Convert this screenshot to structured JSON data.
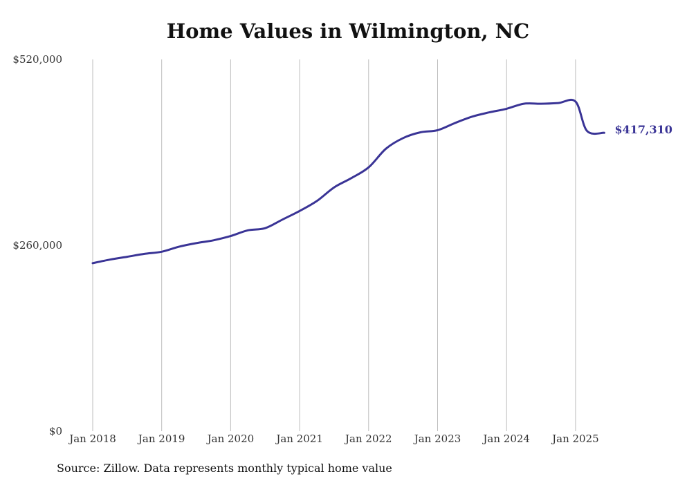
{
  "chart_data": {
    "type": "line",
    "title": "Home Values in Wilmington, NC",
    "xlabel": "",
    "ylabel": "",
    "ylim": [
      0,
      520000
    ],
    "y_ticks": [
      0,
      260000,
      520000
    ],
    "y_tick_labels": [
      "$0",
      "$260,000",
      "$520,000"
    ],
    "x_tick_labels": [
      "Jan 2018",
      "Jan 2019",
      "Jan 2020",
      "Jan 2021",
      "Jan 2022",
      "Jan 2023",
      "Jan 2024",
      "Jan 2025"
    ],
    "x_ticks": [
      "2018-01",
      "2019-01",
      "2020-01",
      "2021-01",
      "2022-01",
      "2023-01",
      "2024-01",
      "2025-01"
    ],
    "grid": "vertical",
    "legend": "none",
    "line_color": "#3a3496",
    "end_label": "$417,310",
    "series": [
      {
        "x": [
          "2018-01",
          "2018-04",
          "2018-07",
          "2018-10",
          "2019-01",
          "2019-04",
          "2019-07",
          "2019-10",
          "2020-01",
          "2020-04",
          "2020-07",
          "2020-10",
          "2021-01",
          "2021-04",
          "2021-07",
          "2021-10",
          "2022-01",
          "2022-04",
          "2022-07",
          "2022-10",
          "2023-01",
          "2023-04",
          "2023-07",
          "2023-10",
          "2024-01",
          "2024-04",
          "2024-07",
          "2024-10",
          "2025-01",
          "2025-03",
          "2025-06"
        ],
        "values": [
          235000,
          240000,
          244000,
          248000,
          251000,
          258000,
          263000,
          267000,
          273000,
          281000,
          284000,
          296000,
          308000,
          322000,
          341000,
          354000,
          369000,
          395000,
          410000,
          418000,
          421000,
          431000,
          440000,
          446000,
          451000,
          458000,
          458000,
          459000,
          461000,
          420000,
          417310
        ]
      }
    ]
  },
  "source_note": "Source: Zillow. Data represents monthly typical home value"
}
